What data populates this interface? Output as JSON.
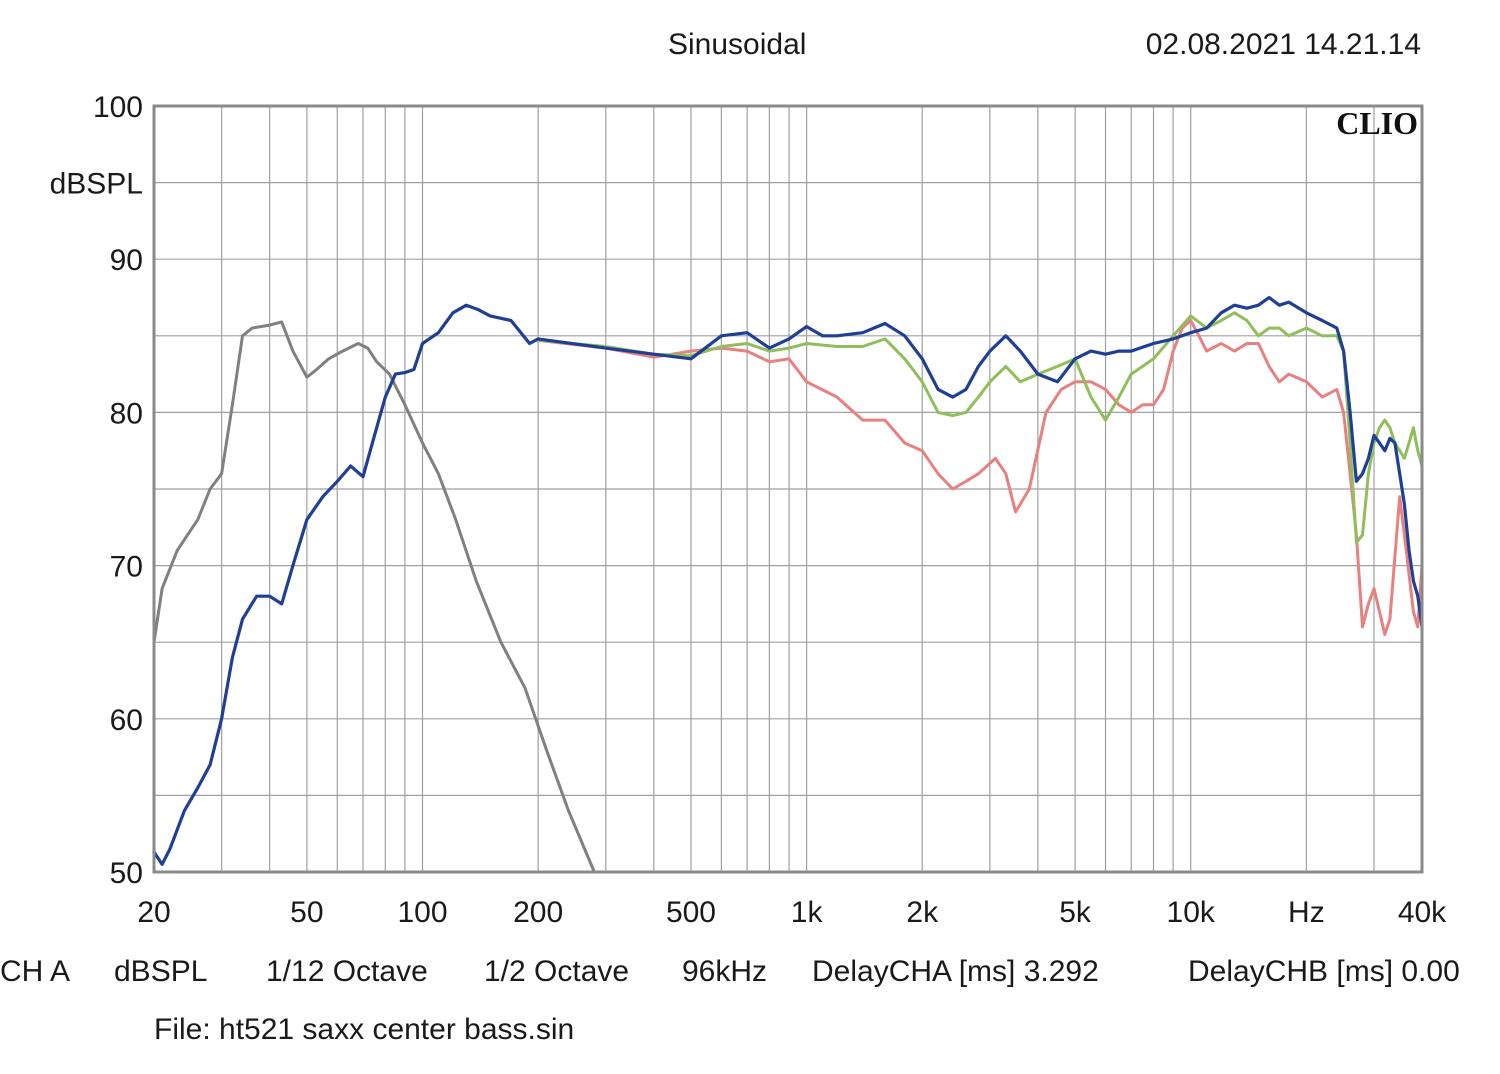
{
  "header": {
    "title": "Sinusoidal",
    "datetime": "02.08.2021 14.21.14"
  },
  "footer": {
    "items": [
      "CH A",
      "dBSPL",
      "1/12 Octave",
      "1/2 Octave",
      "96kHz",
      "DelayCHA [ms] 3.292",
      "DelayCHB [ms] 0.00"
    ],
    "file": "File: ht521 saxx center bass.sin"
  },
  "chart_data": {
    "type": "line",
    "title": "Sinusoidal",
    "brand": "CLIO",
    "xlabel": "Hz",
    "ylabel": "dBSPL",
    "x_scale": "log",
    "xlim": [
      20,
      40000
    ],
    "ylim": [
      50,
      100
    ],
    "grid": true,
    "y_ticks": [
      50,
      60,
      70,
      80,
      90,
      100
    ],
    "y_tick_labels": [
      "50",
      "60",
      "70",
      "80",
      "90",
      "100"
    ],
    "x_tick_values": [
      20,
      50,
      100,
      200,
      500,
      1000,
      2000,
      5000,
      10000,
      20000,
      40000
    ],
    "x_tick_labels": [
      "20",
      "50",
      "100",
      "200",
      "500",
      "1k",
      "2k",
      "5k",
      "10k",
      "Hz",
      "40k"
    ],
    "colors": {
      "grey": "#808080",
      "blue": "#1f3f96",
      "green": "#8fbf5a",
      "red": "#e88080",
      "grid": "#a0a0a0",
      "frame": "#8a8a8a"
    },
    "series": [
      {
        "color": "grey",
        "points": [
          [
            20,
            65
          ],
          [
            21,
            68.5
          ],
          [
            23,
            71
          ],
          [
            26,
            73
          ],
          [
            28,
            75
          ],
          [
            30,
            76
          ],
          [
            32,
            80.5
          ],
          [
            34,
            85
          ],
          [
            36,
            85.5
          ],
          [
            40,
            85.7
          ],
          [
            43,
            85.9
          ],
          [
            46,
            84
          ],
          [
            50,
            82.3
          ],
          [
            53,
            82.8
          ],
          [
            57,
            83.5
          ],
          [
            62,
            84
          ],
          [
            68,
            84.5
          ],
          [
            72,
            84.2
          ],
          [
            76,
            83.3
          ],
          [
            82,
            82.5
          ],
          [
            90,
            80.5
          ],
          [
            100,
            78
          ],
          [
            110,
            76
          ],
          [
            122,
            73
          ],
          [
            138,
            69
          ],
          [
            160,
            65
          ],
          [
            185,
            62
          ],
          [
            210,
            58
          ],
          [
            240,
            54
          ],
          [
            280,
            50
          ]
        ]
      },
      {
        "color": "red",
        "points": [
          [
            200,
            84.7
          ],
          [
            300,
            84.2
          ],
          [
            400,
            83.6
          ],
          [
            500,
            84
          ],
          [
            600,
            84.2
          ],
          [
            700,
            84
          ],
          [
            800,
            83.3
          ],
          [
            900,
            83.5
          ],
          [
            1000,
            82
          ],
          [
            1200,
            81
          ],
          [
            1400,
            79.5
          ],
          [
            1600,
            79.5
          ],
          [
            1800,
            78
          ],
          [
            2000,
            77.5
          ],
          [
            2200,
            76
          ],
          [
            2400,
            75
          ],
          [
            2600,
            75.5
          ],
          [
            2800,
            76
          ],
          [
            3100,
            77
          ],
          [
            3300,
            76
          ],
          [
            3500,
            73.5
          ],
          [
            3800,
            75
          ],
          [
            4200,
            80
          ],
          [
            4600,
            81.5
          ],
          [
            5000,
            82
          ],
          [
            5500,
            82
          ],
          [
            6000,
            81.5
          ],
          [
            6500,
            80.5
          ],
          [
            7000,
            80
          ],
          [
            7500,
            80.5
          ],
          [
            8000,
            80.5
          ],
          [
            8500,
            81.5
          ],
          [
            9000,
            84
          ],
          [
            9500,
            85.5
          ],
          [
            10000,
            86
          ],
          [
            10500,
            85
          ],
          [
            11000,
            84
          ],
          [
            12000,
            84.5
          ],
          [
            13000,
            84
          ],
          [
            14000,
            84.5
          ],
          [
            15000,
            84.5
          ],
          [
            16000,
            83
          ],
          [
            17000,
            82
          ],
          [
            18000,
            82.5
          ],
          [
            20000,
            82
          ],
          [
            22000,
            81
          ],
          [
            24000,
            81.5
          ],
          [
            25000,
            80
          ],
          [
            26000,
            76
          ],
          [
            27000,
            72
          ],
          [
            28000,
            66
          ],
          [
            29000,
            67.5
          ],
          [
            30000,
            68.5
          ],
          [
            31000,
            67
          ],
          [
            32000,
            65.5
          ],
          [
            33000,
            66.5
          ],
          [
            35000,
            74.5
          ],
          [
            36000,
            72
          ],
          [
            38000,
            67
          ],
          [
            39000,
            66
          ],
          [
            40000,
            70
          ]
        ]
      },
      {
        "color": "green",
        "points": [
          [
            200,
            84.7
          ],
          [
            300,
            84.3
          ],
          [
            400,
            83.8
          ],
          [
            500,
            83.7
          ],
          [
            600,
            84.3
          ],
          [
            700,
            84.5
          ],
          [
            800,
            84
          ],
          [
            900,
            84.2
          ],
          [
            1000,
            84.5
          ],
          [
            1200,
            84.3
          ],
          [
            1400,
            84.3
          ],
          [
            1600,
            84.8
          ],
          [
            1800,
            83.5
          ],
          [
            2000,
            82
          ],
          [
            2200,
            80
          ],
          [
            2400,
            79.8
          ],
          [
            2600,
            80
          ],
          [
            2800,
            81
          ],
          [
            3000,
            82
          ],
          [
            3300,
            83
          ],
          [
            3600,
            82
          ],
          [
            4000,
            82.5
          ],
          [
            4500,
            83
          ],
          [
            5000,
            83.5
          ],
          [
            5500,
            81
          ],
          [
            6000,
            79.5
          ],
          [
            6500,
            81
          ],
          [
            7000,
            82.5
          ],
          [
            8000,
            83.5
          ],
          [
            9000,
            85
          ],
          [
            10000,
            86.3
          ],
          [
            11000,
            85.5
          ],
          [
            12000,
            86
          ],
          [
            13000,
            86.5
          ],
          [
            14000,
            86
          ],
          [
            15000,
            85
          ],
          [
            16000,
            85.5
          ],
          [
            17000,
            85.5
          ],
          [
            18000,
            85
          ],
          [
            20000,
            85.5
          ],
          [
            22000,
            85
          ],
          [
            24000,
            85
          ],
          [
            25000,
            84
          ],
          [
            26000,
            78
          ],
          [
            27000,
            71.5
          ],
          [
            28000,
            72
          ],
          [
            29000,
            76
          ],
          [
            30000,
            78
          ],
          [
            31000,
            79
          ],
          [
            32000,
            79.5
          ],
          [
            33000,
            79
          ],
          [
            34000,
            78
          ],
          [
            35000,
            77.5
          ],
          [
            36000,
            77
          ],
          [
            37000,
            78
          ],
          [
            38000,
            79
          ],
          [
            39000,
            77.5
          ],
          [
            40000,
            76.5
          ]
        ]
      },
      {
        "color": "blue",
        "points": [
          [
            20,
            51.3
          ],
          [
            21,
            50.5
          ],
          [
            22,
            51.5
          ],
          [
            24,
            54
          ],
          [
            26,
            55.5
          ],
          [
            28,
            57
          ],
          [
            30,
            60
          ],
          [
            32,
            64
          ],
          [
            34,
            66.5
          ],
          [
            37,
            68
          ],
          [
            40,
            68
          ],
          [
            43,
            67.5
          ],
          [
            46,
            70
          ],
          [
            50,
            73
          ],
          [
            55,
            74.5
          ],
          [
            60,
            75.5
          ],
          [
            65,
            76.5
          ],
          [
            70,
            75.8
          ],
          [
            75,
            78.5
          ],
          [
            80,
            81
          ],
          [
            85,
            82.5
          ],
          [
            90,
            82.6
          ],
          [
            95,
            82.8
          ],
          [
            100,
            84.5
          ],
          [
            110,
            85.2
          ],
          [
            120,
            86.5
          ],
          [
            130,
            87
          ],
          [
            140,
            86.7
          ],
          [
            150,
            86.3
          ],
          [
            170,
            86
          ],
          [
            190,
            84.5
          ],
          [
            200,
            84.8
          ],
          [
            300,
            84.2
          ],
          [
            400,
            83.8
          ],
          [
            500,
            83.5
          ],
          [
            600,
            85
          ],
          [
            700,
            85.2
          ],
          [
            800,
            84.2
          ],
          [
            900,
            84.8
          ],
          [
            1000,
            85.6
          ],
          [
            1100,
            85
          ],
          [
            1200,
            85
          ],
          [
            1400,
            85.2
          ],
          [
            1600,
            85.8
          ],
          [
            1800,
            85
          ],
          [
            2000,
            83.5
          ],
          [
            2200,
            81.5
          ],
          [
            2400,
            81
          ],
          [
            2600,
            81.5
          ],
          [
            2800,
            83
          ],
          [
            3000,
            84
          ],
          [
            3300,
            85
          ],
          [
            3600,
            84
          ],
          [
            4000,
            82.5
          ],
          [
            4500,
            82
          ],
          [
            5000,
            83.5
          ],
          [
            5500,
            84
          ],
          [
            6000,
            83.8
          ],
          [
            6500,
            84
          ],
          [
            7000,
            84
          ],
          [
            8000,
            84.5
          ],
          [
            9000,
            84.8
          ],
          [
            10000,
            85.2
          ],
          [
            11000,
            85.5
          ],
          [
            12000,
            86.5
          ],
          [
            13000,
            87
          ],
          [
            14000,
            86.8
          ],
          [
            15000,
            87
          ],
          [
            16000,
            87.5
          ],
          [
            17000,
            87
          ],
          [
            18000,
            87.2
          ],
          [
            20000,
            86.5
          ],
          [
            22000,
            86
          ],
          [
            24000,
            85.5
          ],
          [
            25000,
            84
          ],
          [
            26000,
            80
          ],
          [
            27000,
            75.5
          ],
          [
            28000,
            76
          ],
          [
            29000,
            77
          ],
          [
            30000,
            78.5
          ],
          [
            31000,
            78
          ],
          [
            32000,
            77.5
          ],
          [
            33000,
            78.3
          ],
          [
            34000,
            78
          ],
          [
            35000,
            76
          ],
          [
            36000,
            74
          ],
          [
            37000,
            71
          ],
          [
            38000,
            69
          ],
          [
            39000,
            68
          ],
          [
            40000,
            66
          ]
        ]
      }
    ]
  }
}
